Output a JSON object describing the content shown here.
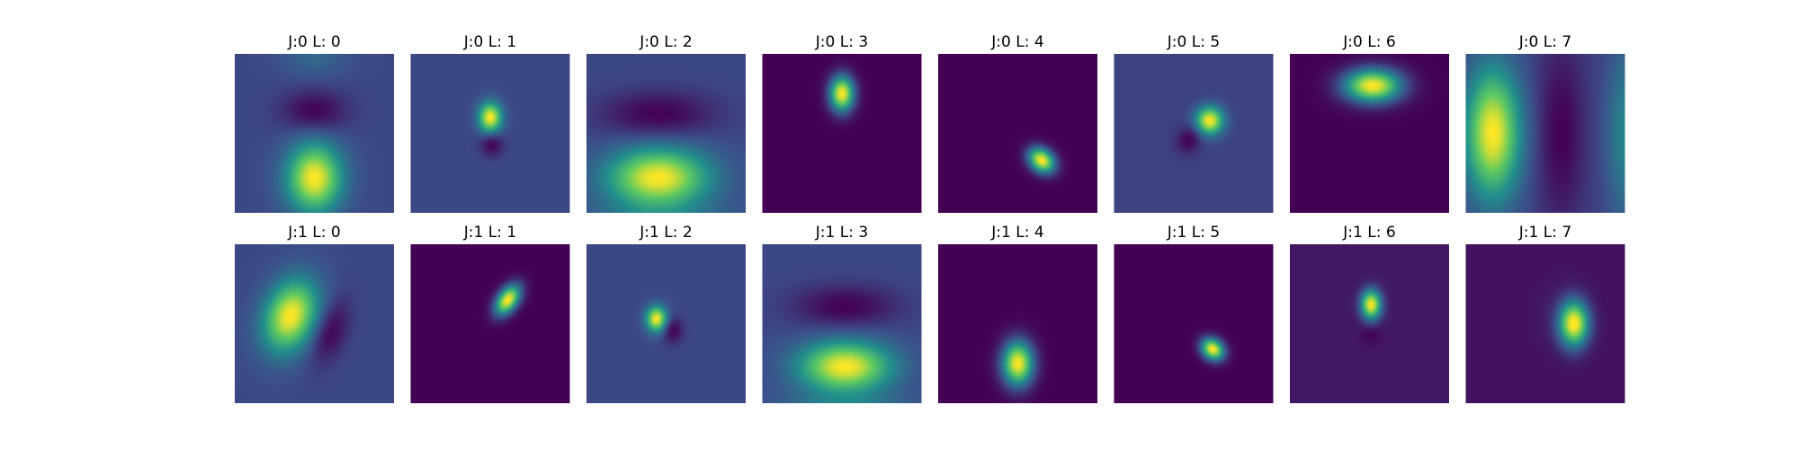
{
  "figure": {
    "colormap": "viridis",
    "colormap_stops": [
      "#440154",
      "#3b528b",
      "#21918c",
      "#5ec962",
      "#fde725"
    ]
  },
  "chart_data": [
    {
      "type": "heatmap",
      "title": "J:0 L: 0",
      "background": 0.22,
      "blobs": [
        {
          "x": 0.5,
          "y": 0.78,
          "sx": 0.12,
          "sy": 0.15,
          "a": 0.78
        },
        {
          "x": 0.5,
          "y": 0.36,
          "sx": 0.14,
          "sy": 0.09,
          "a": -0.22
        },
        {
          "x": 0.5,
          "y": 0.0,
          "sx": 0.14,
          "sy": 0.1,
          "a": 0.12
        }
      ]
    },
    {
      "type": "heatmap",
      "title": "J:0 L: 1",
      "background": 0.22,
      "blobs": [
        {
          "x": 0.5,
          "y": 0.4,
          "sx": 0.05,
          "sy": 0.065,
          "a": 0.78
        },
        {
          "x": 0.51,
          "y": 0.57,
          "sx": 0.05,
          "sy": 0.05,
          "a": -0.22
        }
      ]
    },
    {
      "type": "heatmap",
      "title": "J:0 L: 2",
      "background": 0.22,
      "blobs": [
        {
          "x": 0.45,
          "y": 0.78,
          "sx": 0.22,
          "sy": 0.13,
          "a": 0.78
        },
        {
          "x": 0.45,
          "y": 0.38,
          "sx": 0.24,
          "sy": 0.1,
          "a": -0.22
        },
        {
          "x": 0.45,
          "y": 1.05,
          "sx": 0.35,
          "sy": 0.08,
          "a": 0.15
        }
      ]
    },
    {
      "type": "heatmap",
      "title": "J:0 L: 3",
      "background": 0.0,
      "blobs": [
        {
          "x": 0.5,
          "y": 0.25,
          "sx": 0.055,
          "sy": 0.08,
          "a": 1.0
        }
      ]
    },
    {
      "type": "heatmap",
      "title": "J:0 L: 4",
      "background": 0.0,
      "blobs": [
        {
          "x": 0.65,
          "y": 0.67,
          "sx": 0.065,
          "sy": 0.05,
          "a": 1.0,
          "rot": 40
        }
      ]
    },
    {
      "type": "heatmap",
      "title": "J:0 L: 5",
      "background": 0.2,
      "blobs": [
        {
          "x": 0.6,
          "y": 0.42,
          "sx": 0.06,
          "sy": 0.06,
          "a": 0.8,
          "rot": 30
        },
        {
          "x": 0.47,
          "y": 0.54,
          "sx": 0.05,
          "sy": 0.06,
          "a": -0.2,
          "rot": 30
        }
      ]
    },
    {
      "type": "heatmap",
      "title": "J:0 L: 6",
      "background": 0.0,
      "blobs": [
        {
          "x": 0.52,
          "y": 0.2,
          "sx": 0.13,
          "sy": 0.075,
          "a": 1.0
        }
      ]
    },
    {
      "type": "heatmap",
      "title": "J:0 L: 7",
      "background": 0.2,
      "blobs": [
        {
          "x": 0.17,
          "y": 0.5,
          "sx": 0.12,
          "sy": 0.28,
          "a": 0.8
        },
        {
          "x": 0.6,
          "y": 0.5,
          "sx": 0.1,
          "sy": 0.4,
          "a": -0.2
        },
        {
          "x": 1.0,
          "y": 0.5,
          "sx": 0.08,
          "sy": 0.4,
          "a": 0.25
        }
      ]
    },
    {
      "type": "heatmap",
      "title": "J:1 L: 0",
      "background": 0.22,
      "blobs": [
        {
          "x": 0.35,
          "y": 0.45,
          "sx": 0.11,
          "sy": 0.16,
          "a": 0.78,
          "rot": 20
        },
        {
          "x": 0.6,
          "y": 0.55,
          "sx": 0.07,
          "sy": 0.14,
          "a": -0.22,
          "rot": 20
        }
      ]
    },
    {
      "type": "heatmap",
      "title": "J:1 L: 1",
      "background": 0.0,
      "blobs": [
        {
          "x": 0.61,
          "y": 0.35,
          "sx": 0.045,
          "sy": 0.075,
          "a": 1.0,
          "rot": 35
        }
      ]
    },
    {
      "type": "heatmap",
      "title": "J:1 L: 2",
      "background": 0.22,
      "blobs": [
        {
          "x": 0.44,
          "y": 0.47,
          "sx": 0.045,
          "sy": 0.055,
          "a": 0.78
        },
        {
          "x": 0.54,
          "y": 0.54,
          "sx": 0.045,
          "sy": 0.055,
          "a": -0.22
        }
      ]
    },
    {
      "type": "heatmap",
      "title": "J:1 L: 3",
      "background": 0.22,
      "blobs": [
        {
          "x": 0.52,
          "y": 0.77,
          "sx": 0.2,
          "sy": 0.11,
          "a": 0.78
        },
        {
          "x": 0.52,
          "y": 0.39,
          "sx": 0.22,
          "sy": 0.09,
          "a": -0.22
        },
        {
          "x": 0.52,
          "y": 1.05,
          "sx": 0.3,
          "sy": 0.08,
          "a": 0.2
        }
      ]
    },
    {
      "type": "heatmap",
      "title": "J:1 L: 4",
      "background": 0.0,
      "blobs": [
        {
          "x": 0.5,
          "y": 0.75,
          "sx": 0.07,
          "sy": 0.1,
          "a": 1.0
        }
      ]
    },
    {
      "type": "heatmap",
      "title": "J:1 L: 5",
      "background": 0.0,
      "blobs": [
        {
          "x": 0.62,
          "y": 0.66,
          "sx": 0.055,
          "sy": 0.045,
          "a": 1.0,
          "rot": 40
        }
      ]
    },
    {
      "type": "heatmap",
      "title": "J:1 L: 6",
      "background": 0.07,
      "blobs": [
        {
          "x": 0.51,
          "y": 0.38,
          "sx": 0.045,
          "sy": 0.065,
          "a": 0.93
        },
        {
          "x": 0.51,
          "y": 0.57,
          "sx": 0.045,
          "sy": 0.04,
          "a": -0.07
        }
      ]
    },
    {
      "type": "heatmap",
      "title": "J:1 L: 7",
      "background": 0.05,
      "blobs": [
        {
          "x": 0.68,
          "y": 0.5,
          "sx": 0.065,
          "sy": 0.1,
          "a": 0.95
        },
        {
          "x": 0.6,
          "y": 0.45,
          "sx": 0.1,
          "sy": 0.14,
          "a": 0.05
        }
      ]
    }
  ]
}
